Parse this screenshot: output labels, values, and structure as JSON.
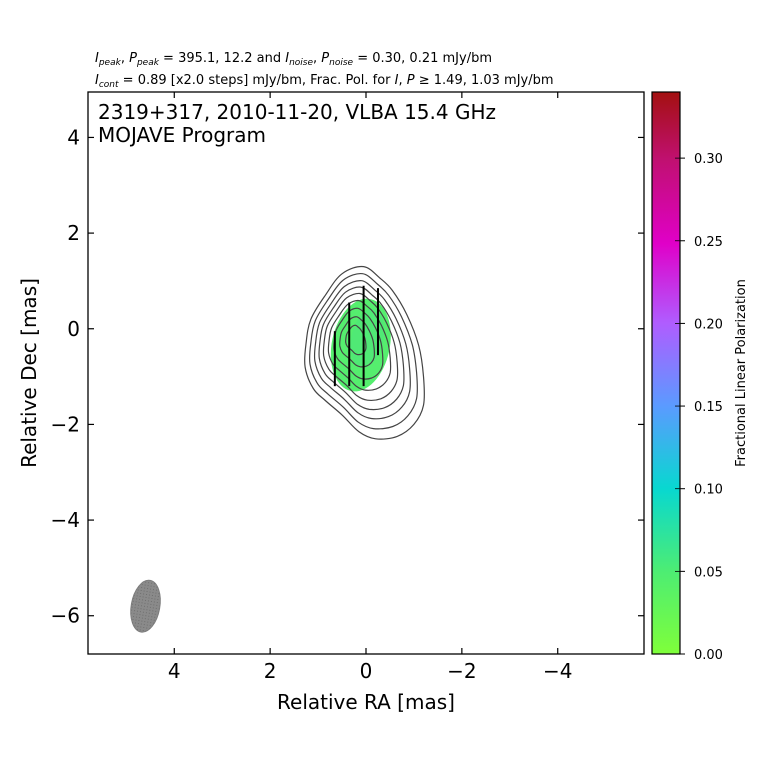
{
  "header": {
    "line1": "I_peak, P_peak = 395.1, 12.2 and I_noise, P_noise = 0.30, 0.21 mJy/bm",
    "line1_parts": {
      "a": "I",
      "a_sub": "peak",
      "b": ", ",
      "c": "P",
      "c_sub": "peak",
      "d": " = 395.1, 12.2 and ",
      "e": "I",
      "e_sub": "noise",
      "f": ", ",
      "g": "P",
      "g_sub": "noise",
      "h": " = 0.30, 0.21 mJy/bm"
    },
    "line2_parts": {
      "a": "I",
      "a_sub": "cont",
      "b": " = 0.89 [x2.0 steps] mJy/bm, Frac. Pol. for ",
      "c": "I",
      "d": ", ",
      "e": "P",
      "f": " ≥ 1.49, 1.03 mJy/bm"
    }
  },
  "plot": {
    "title_line1": "2319+317, 2010-11-20, VLBA 15.4 GHz",
    "title_line2": "MOJAVE Program",
    "xlabel": "Relative RA [mas]",
    "ylabel": "Relative Dec [mas]",
    "colorbar_label": "Fractional Linear Polarization"
  },
  "chart_data": {
    "type": "contour",
    "xlim": [
      5.8,
      -5.8
    ],
    "ylim": [
      -6.8,
      4.95
    ],
    "xticks": [
      4,
      2,
      0,
      -2,
      -4
    ],
    "xtick_labels": [
      "4",
      "2",
      "0",
      "−2",
      "−4"
    ],
    "yticks": [
      4,
      2,
      0,
      -2,
      -4,
      -6
    ],
    "ytick_labels": [
      "4",
      "2",
      "0",
      "−2",
      "−4",
      "−6"
    ],
    "contours": {
      "base_mJy_per_beam": 0.89,
      "step_factor": 2.0,
      "levels_count": 9,
      "center": [
        0.05,
        -0.35
      ],
      "color": "#444444"
    },
    "beam": {
      "center": [
        4.6,
        -5.8
      ],
      "major_mas": 1.1,
      "minor_mas": 0.6,
      "pa_deg": -10,
      "color": "#808080"
    },
    "polarization": {
      "region_center": [
        0.1,
        -0.3
      ],
      "fractional_pol_range": [
        0.03,
        0.06
      ],
      "evpa_deg": 0,
      "vector_x": [
        0.65,
        0.35,
        0.05,
        -0.25
      ],
      "vector_color": "#000000",
      "fill_color": "#55ee6e"
    },
    "colorbar": {
      "range": [
        0.0,
        0.34
      ],
      "ticks": [
        0.0,
        0.05,
        0.1,
        0.15,
        0.2,
        0.25,
        0.3
      ],
      "tick_labels": [
        "0.00",
        "0.05",
        "0.10",
        "0.15",
        "0.20",
        "0.25",
        "0.30"
      ],
      "colors": [
        "#7fff3a",
        "#4ded73",
        "#08d8d0",
        "#5a9bff",
        "#b05cff",
        "#e000c8",
        "#c01070",
        "#a31010"
      ]
    }
  }
}
